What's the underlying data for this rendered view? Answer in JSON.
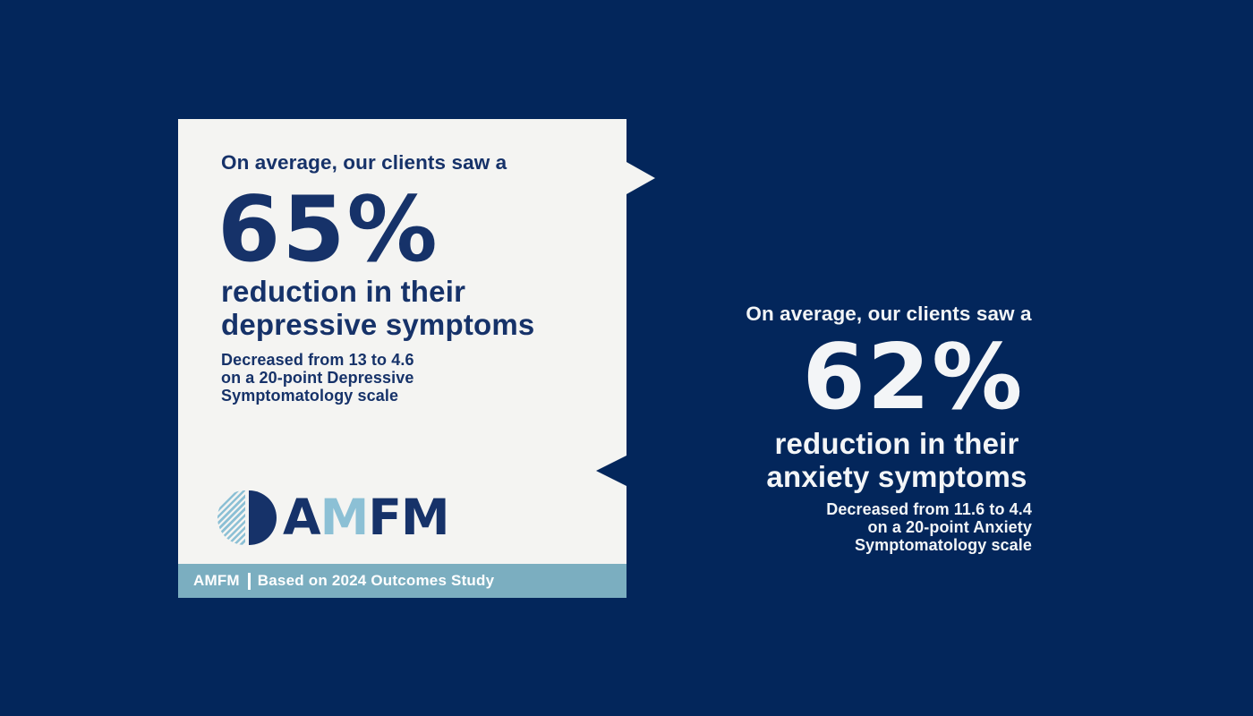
{
  "colors": {
    "background_navy": "#03265B",
    "card_background": "#F4F4F2",
    "card_text_navy": "#163269",
    "light_blue": "#8CC0D5",
    "footer_bar": "#7BAEC0",
    "panel_text": "#F3F5F7"
  },
  "card": {
    "heading": "On average, our clients saw a",
    "stat": "65%",
    "headline_line1": "reduction in their",
    "headline_line2": "depressive symptoms",
    "subtext": {
      "prefix": "Decreased from",
      "from_value": "13",
      "connector": "to",
      "to_value": "4.6",
      "line2": "on a 20-point Depressive",
      "line3": "Symptomatology scale"
    },
    "logo": {
      "letters": [
        {
          "char": "A"
        },
        {
          "char": "M"
        },
        {
          "char": "F"
        },
        {
          "char": "M"
        }
      ]
    },
    "footer": {
      "brand": "AMFM",
      "note": "Based on 2024 Outcomes Study"
    }
  },
  "right_panel": {
    "heading": "On average, our clients saw a",
    "stat": "62%",
    "headline_line1": "reduction in their",
    "headline_line2": "anxiety symptoms",
    "subtext": {
      "prefix": "Decreased from",
      "from_value": "11.6",
      "connector": "to",
      "to_value": "4.4",
      "line2": "on a 20-point Anxiety",
      "line3": "Symptomatology scale"
    }
  }
}
